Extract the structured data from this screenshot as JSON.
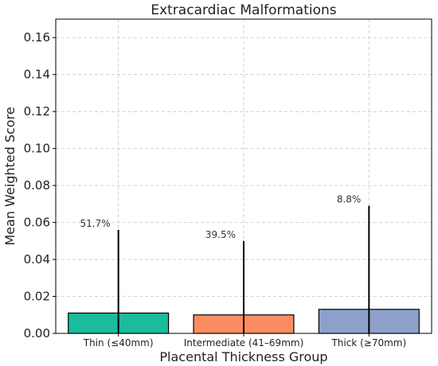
{
  "chart_data": {
    "type": "bar",
    "title": "Extracardiac Malformations",
    "xlabel": "Placental Thickness Group",
    "ylabel": "Mean Weighted Score",
    "categories": [
      "Thin (≤40mm)",
      "Intermediate (41–69mm)",
      "Thick (≥70mm)"
    ],
    "values": [
      0.011,
      0.01,
      0.013
    ],
    "error_upper": [
      0.056,
      0.05,
      0.069
    ],
    "annotations": [
      "51.7%",
      "39.5%",
      "8.8%"
    ],
    "colors": [
      "#1abc9c",
      "#fc8d62",
      "#8da0cb"
    ],
    "ylim": [
      0,
      0.17
    ],
    "yticks": [
      0.0,
      0.02,
      0.04,
      0.06,
      0.08,
      0.1,
      0.12,
      0.14,
      0.16
    ],
    "ytick_labels": [
      "0.00",
      "0.02",
      "0.04",
      "0.06",
      "0.08",
      "0.10",
      "0.12",
      "0.14",
      "0.16"
    ],
    "grid": true
  }
}
